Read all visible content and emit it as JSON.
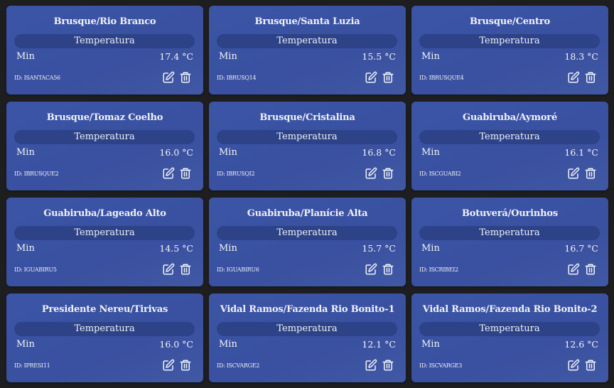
{
  "colors": {
    "background": "#1e1e20",
    "card": "#3a52a2",
    "pill": "#2d4287",
    "text": "#f0f2f8"
  },
  "cards": [
    {
      "title": "Brusque/Rio Branco",
      "metric": "Temperatura",
      "label": "Min",
      "value": "17.4 °C",
      "id": "ID: ISANTACA56"
    },
    {
      "title": "Brusque/Santa Luzia",
      "metric": "Temperatura",
      "label": "Min",
      "value": "15.5 °C",
      "id": "ID: IBRUSQ14"
    },
    {
      "title": "Brusque/Centro",
      "metric": "Temperatura",
      "label": "Min",
      "value": "18.3 °C",
      "id": "ID: IBRUSQUE4"
    },
    {
      "title": "Brusque/Tomaz Coelho",
      "metric": "Temperatura",
      "label": "Min",
      "value": "16.0 °C",
      "id": "ID: IBRUSQUE2"
    },
    {
      "title": "Brusque/Cristalina",
      "metric": "Temperatura",
      "label": "Min",
      "value": "16.8 °C",
      "id": "ID: IBRUSQI2"
    },
    {
      "title": "Guabiruba/Aymoré",
      "metric": "Temperatura",
      "label": "Min",
      "value": "16.1 °C",
      "id": "ID: ISCGUABI2"
    },
    {
      "title": "Guabiruba/Lageado Alto",
      "metric": "Temperatura",
      "label": "Min",
      "value": "14.5 °C",
      "id": "ID: IGUABIRU5"
    },
    {
      "title": "Guabiruba/Planície Alta",
      "metric": "Temperatura",
      "label": "Min",
      "value": "15.7 °C",
      "id": "ID: IGUABIRU6"
    },
    {
      "title": "Botuverá/Ourinhos",
      "metric": "Temperatura",
      "label": "Min",
      "value": "16.7 °C",
      "id": "ID: ISCRIBEI2"
    },
    {
      "title": "Presidente Nereu/Tirivas",
      "metric": "Temperatura",
      "label": "Min",
      "value": "16.0 °C",
      "id": "ID: IPRESI11"
    },
    {
      "title": "Vidal Ramos/Fazenda Rio Bonito-1",
      "metric": "Temperatura",
      "label": "Min",
      "value": "12.1 °C",
      "id": "ID: ISCVARGE2"
    },
    {
      "title": "Vidal Ramos/Fazenda Rio Bonito-2",
      "metric": "Temperatura",
      "label": "Min",
      "value": "12.6 °C",
      "id": "ID: ISCVARGE3"
    }
  ]
}
